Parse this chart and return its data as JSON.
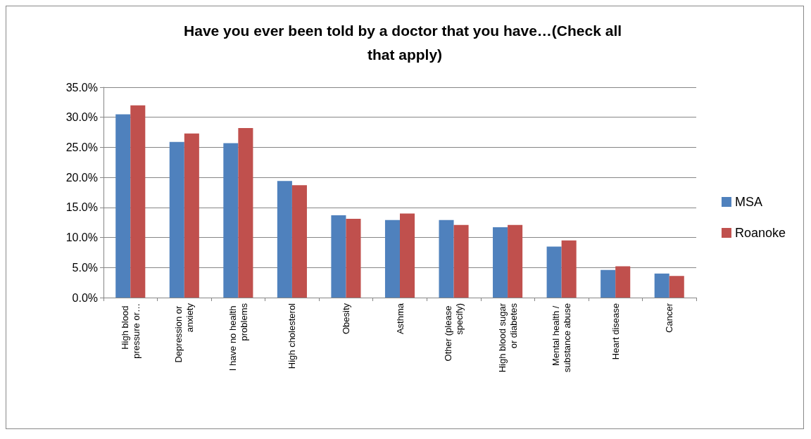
{
  "chart_data": {
    "type": "bar",
    "title": "Have you ever been told by a doctor that you have…(Check all that apply)",
    "categories": [
      "High blood pressure or…",
      "Depression or anxiety",
      "I have no health problems",
      "High cholesterol",
      "Obesity",
      "Asthma",
      "Other (please specify)",
      "High blood sugar or diabetes",
      "Mental health / substance abuse",
      "Heart disease",
      "Cancer"
    ],
    "series": [
      {
        "name": "MSA",
        "color": "#4f81bd",
        "values": [
          30.5,
          25.9,
          25.7,
          19.4,
          13.7,
          12.9,
          12.9,
          11.7,
          8.5,
          4.6,
          4.0
        ]
      },
      {
        "name": "Roanoke",
        "color": "#c0504d",
        "values": [
          32.0,
          27.3,
          28.2,
          18.7,
          13.1,
          14.0,
          12.1,
          12.1,
          9.5,
          5.2,
          3.6
        ]
      }
    ],
    "ylim": [
      0,
      35
    ],
    "yticks": [
      {
        "value": 0,
        "label": "0.0%"
      },
      {
        "value": 5,
        "label": "5.0%"
      },
      {
        "value": 10,
        "label": "10.0%"
      },
      {
        "value": 15,
        "label": "15.0%"
      },
      {
        "value": 20,
        "label": "20.0%"
      },
      {
        "value": 25,
        "label": "25.0%"
      },
      {
        "value": 30,
        "label": "30.0%"
      },
      {
        "value": 35,
        "label": "35.0%"
      }
    ],
    "grid": "y",
    "legend": "right"
  }
}
